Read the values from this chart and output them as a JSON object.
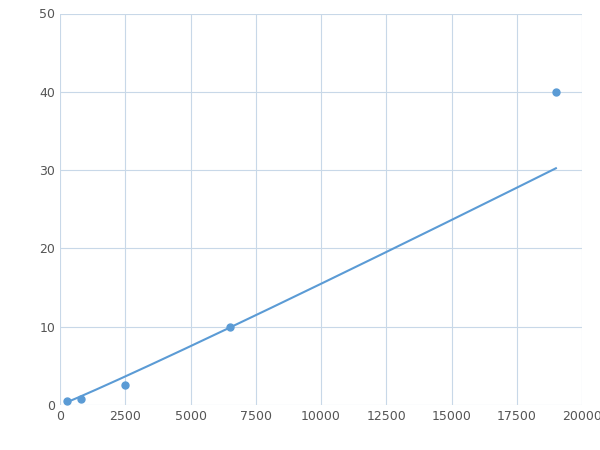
{
  "x": [
    250,
    800,
    2500,
    6500,
    19000
  ],
  "y": [
    0.5,
    0.8,
    2.5,
    10.0,
    40.0
  ],
  "line_color": "#5b9bd5",
  "marker_color": "#5b9bd5",
  "marker_size": 5,
  "linewidth": 1.5,
  "xlim": [
    0,
    20000
  ],
  "ylim": [
    0,
    50
  ],
  "xticks": [
    0,
    2500,
    5000,
    7500,
    10000,
    12500,
    15000,
    17500,
    20000
  ],
  "yticks": [
    0,
    10,
    20,
    30,
    40,
    50
  ],
  "grid_color": "#c8d8e8",
  "background_color": "#ffffff",
  "figure_bg": "#ffffff"
}
